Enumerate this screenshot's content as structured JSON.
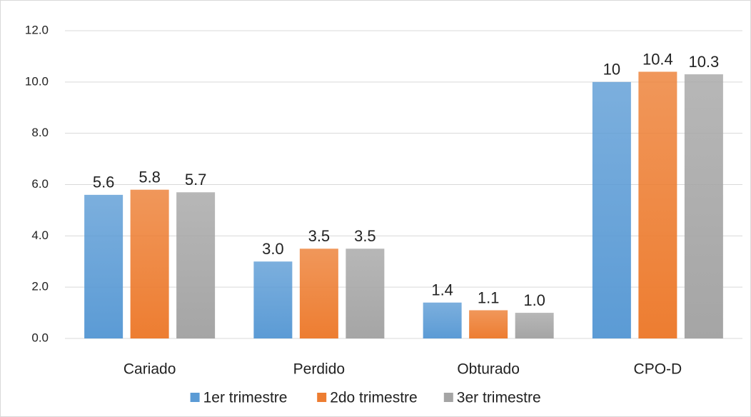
{
  "chart_data": {
    "type": "bar",
    "categories": [
      "Cariado",
      "Perdido",
      "Obturado",
      "CPO-D"
    ],
    "series": [
      {
        "name": "1er trimestre",
        "color": "#5b9bd5",
        "values": [
          5.6,
          3.0,
          1.4,
          10
        ],
        "value_labels": [
          "5.6",
          "3.0",
          "1.4",
          "10"
        ]
      },
      {
        "name": "2do trimestre",
        "color": "#ed7d31",
        "values": [
          5.8,
          3.5,
          1.1,
          10.4
        ],
        "value_labels": [
          "5.8",
          "3.5",
          "1.1",
          "10.4"
        ]
      },
      {
        "name": "3er trimestre",
        "color": "#a5a5a5",
        "values": [
          5.7,
          3.5,
          1.0,
          10.3
        ],
        "value_labels": [
          "5.7",
          "3.5",
          "1.0",
          "10.3"
        ]
      }
    ],
    "ylim": [
      0,
      12
    ],
    "yticks": [
      {
        "value": 0,
        "label": "0.0"
      },
      {
        "value": 2,
        "label": "2.0"
      },
      {
        "value": 4,
        "label": "4.0"
      },
      {
        "value": 6,
        "label": "6.0"
      },
      {
        "value": 8,
        "label": "8.0"
      },
      {
        "value": 10,
        "label": "10.0"
      },
      {
        "value": 12,
        "label": "12.0"
      }
    ],
    "grid": true,
    "legend": "bottom"
  }
}
